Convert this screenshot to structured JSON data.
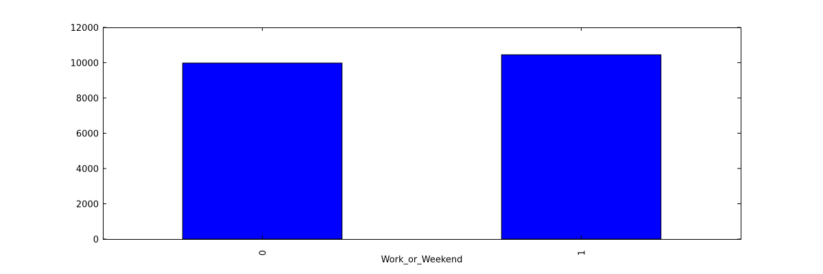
{
  "chart_data": {
    "type": "bar",
    "categories": [
      "0",
      "1"
    ],
    "values": [
      9980,
      10450
    ],
    "title": "",
    "xlabel": "Work_or_Weekend",
    "ylabel": "",
    "ylim": [
      0,
      12000
    ],
    "yticks": [
      0,
      2000,
      4000,
      6000,
      8000,
      10000,
      12000
    ],
    "grid": false,
    "bar_color": "#0000ff",
    "edge_color": "#000000"
  }
}
